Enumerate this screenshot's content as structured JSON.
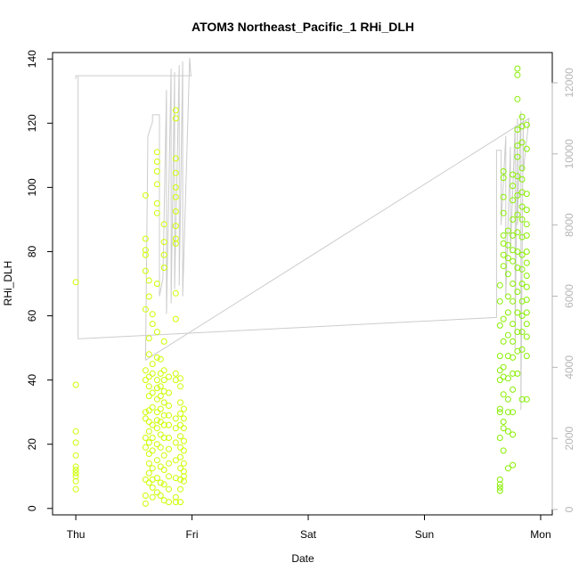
{
  "chart_data": {
    "type": "scatter",
    "title": "ATOM3 Northeast_Pacific_1 RHi_DLH",
    "xlabel": "Date",
    "ylabel": "RHi_DLH",
    "x_ticks": [
      "Thu",
      "Fri",
      "Sat",
      "Sun",
      "Mon"
    ],
    "x_range_days": [
      -0.2,
      4.1
    ],
    "ylim": [
      -2,
      142
    ],
    "y_ticks": [
      0,
      20,
      40,
      60,
      80,
      100,
      120,
      140
    ],
    "y2_ticks": [
      0,
      2000,
      4000,
      6000,
      8000,
      10000,
      12000
    ],
    "y2lim": [
      -150,
      12850
    ],
    "grid": false,
    "colors": {
      "points_early": "#ccff00",
      "points_late": "#88ee00",
      "line": "#cccccc",
      "right_axis": "#b5b5b5",
      "axis": "#000000"
    },
    "series": [
      {
        "style": "points",
        "points": [
          [
            0.0,
            70.5
          ],
          [
            0.0,
            38.5
          ],
          [
            0.0,
            24
          ],
          [
            0.0,
            20.5
          ],
          [
            0.0,
            16.5
          ],
          [
            0.0,
            13
          ],
          [
            0.0,
            12
          ],
          [
            0.0,
            11
          ],
          [
            0.0,
            10
          ],
          [
            0.0,
            8.5
          ],
          [
            0.0,
            6
          ],
          [
            0.6,
            97.5
          ],
          [
            0.6,
            84
          ],
          [
            0.6,
            80.5
          ],
          [
            0.6,
            79
          ],
          [
            0.6,
            74
          ],
          [
            0.6,
            62
          ],
          [
            0.6,
            43
          ],
          [
            0.6,
            40
          ],
          [
            0.6,
            30
          ],
          [
            0.6,
            28
          ],
          [
            0.6,
            22
          ],
          [
            0.6,
            19
          ],
          [
            0.6,
            9
          ],
          [
            0.6,
            4
          ],
          [
            0.6,
            1.5
          ],
          [
            0.63,
            71
          ],
          [
            0.63,
            66
          ],
          [
            0.63,
            53
          ],
          [
            0.63,
            48
          ],
          [
            0.63,
            41
          ],
          [
            0.63,
            38
          ],
          [
            0.63,
            35
          ],
          [
            0.63,
            30.5
          ],
          [
            0.63,
            27
          ],
          [
            0.63,
            24
          ],
          [
            0.63,
            20.5
          ],
          [
            0.63,
            17
          ],
          [
            0.63,
            14
          ],
          [
            0.63,
            11
          ],
          [
            0.63,
            8
          ],
          [
            0.66,
            60.5
          ],
          [
            0.66,
            57.5
          ],
          [
            0.66,
            45
          ],
          [
            0.66,
            42
          ],
          [
            0.66,
            36
          ],
          [
            0.66,
            31.5
          ],
          [
            0.66,
            26
          ],
          [
            0.66,
            22
          ],
          [
            0.66,
            18
          ],
          [
            0.66,
            12.5
          ],
          [
            0.66,
            9
          ],
          [
            0.66,
            6.5
          ],
          [
            0.66,
            3.5
          ],
          [
            0.7,
            111
          ],
          [
            0.7,
            108
          ],
          [
            0.7,
            105
          ],
          [
            0.7,
            101
          ],
          [
            0.7,
            95
          ],
          [
            0.7,
            92
          ],
          [
            0.7,
            70
          ],
          [
            0.7,
            55
          ],
          [
            0.7,
            47
          ],
          [
            0.7,
            40
          ],
          [
            0.7,
            37.5
          ],
          [
            0.7,
            34
          ],
          [
            0.7,
            30
          ],
          [
            0.7,
            27.5
          ],
          [
            0.7,
            25
          ],
          [
            0.7,
            20
          ],
          [
            0.7,
            15
          ],
          [
            0.7,
            9.5
          ],
          [
            0.7,
            5
          ],
          [
            0.73,
            46.5
          ],
          [
            0.73,
            42
          ],
          [
            0.73,
            38
          ],
          [
            0.73,
            35
          ],
          [
            0.73,
            31
          ],
          [
            0.73,
            27
          ],
          [
            0.73,
            23
          ],
          [
            0.73,
            19
          ],
          [
            0.73,
            13
          ],
          [
            0.73,
            8
          ],
          [
            0.73,
            4
          ],
          [
            0.76,
            88.5
          ],
          [
            0.76,
            83
          ],
          [
            0.76,
            79
          ],
          [
            0.76,
            75
          ],
          [
            0.76,
            52
          ],
          [
            0.76,
            43
          ],
          [
            0.76,
            40
          ],
          [
            0.76,
            36.5
          ],
          [
            0.76,
            33
          ],
          [
            0.76,
            29
          ],
          [
            0.76,
            26
          ],
          [
            0.76,
            22
          ],
          [
            0.76,
            16.5
          ],
          [
            0.76,
            12
          ],
          [
            0.76,
            7.5
          ],
          [
            0.76,
            2.5
          ],
          [
            0.8,
            41
          ],
          [
            0.8,
            36
          ],
          [
            0.8,
            32
          ],
          [
            0.8,
            29
          ],
          [
            0.8,
            26
          ],
          [
            0.8,
            22
          ],
          [
            0.8,
            18.5
          ],
          [
            0.8,
            14
          ],
          [
            0.8,
            10
          ],
          [
            0.8,
            6
          ],
          [
            0.8,
            2
          ],
          [
            0.86,
            124
          ],
          [
            0.86,
            121.5
          ],
          [
            0.86,
            109
          ],
          [
            0.86,
            104.5
          ],
          [
            0.86,
            100
          ],
          [
            0.86,
            97
          ],
          [
            0.86,
            92.5
          ],
          [
            0.86,
            88
          ],
          [
            0.86,
            84
          ],
          [
            0.86,
            82.5
          ],
          [
            0.86,
            67
          ],
          [
            0.86,
            59
          ],
          [
            0.86,
            42
          ],
          [
            0.86,
            40
          ],
          [
            0.86,
            28
          ],
          [
            0.86,
            25
          ],
          [
            0.86,
            20.5
          ],
          [
            0.86,
            15
          ],
          [
            0.86,
            9.5
          ],
          [
            0.86,
            3.5
          ],
          [
            0.86,
            2
          ],
          [
            0.9,
            40.5
          ],
          [
            0.9,
            38
          ],
          [
            0.9,
            33
          ],
          [
            0.9,
            29.5
          ],
          [
            0.9,
            26
          ],
          [
            0.9,
            22.5
          ],
          [
            0.9,
            19
          ],
          [
            0.9,
            16
          ],
          [
            0.9,
            12.5
          ],
          [
            0.9,
            9
          ],
          [
            0.9,
            6
          ],
          [
            0.9,
            2
          ],
          [
            0.93,
            31
          ],
          [
            0.93,
            28
          ],
          [
            0.93,
            25
          ],
          [
            0.93,
            21
          ],
          [
            0.93,
            18
          ],
          [
            0.93,
            14
          ],
          [
            0.93,
            11.5
          ],
          [
            0.93,
            10
          ],
          [
            0.93,
            8.5
          ]
        ]
      },
      {
        "style": "points",
        "points": [
          [
            3.65,
            69.5
          ],
          [
            3.65,
            64.5
          ],
          [
            3.65,
            57
          ],
          [
            3.65,
            47.5
          ],
          [
            3.65,
            43
          ],
          [
            3.65,
            40
          ],
          [
            3.65,
            31
          ],
          [
            3.65,
            30
          ],
          [
            3.65,
            22
          ],
          [
            3.65,
            9
          ],
          [
            3.65,
            7.5
          ],
          [
            3.65,
            6.5
          ],
          [
            3.65,
            5.5
          ],
          [
            3.68,
            105
          ],
          [
            3.68,
            103
          ],
          [
            3.68,
            97
          ],
          [
            3.68,
            92
          ],
          [
            3.68,
            85
          ],
          [
            3.68,
            82.5
          ],
          [
            3.68,
            79
          ],
          [
            3.68,
            75.5
          ],
          [
            3.68,
            59
          ],
          [
            3.68,
            52
          ],
          [
            3.68,
            44
          ],
          [
            3.68,
            41
          ],
          [
            3.68,
            35.5
          ],
          [
            3.68,
            27
          ],
          [
            3.68,
            25
          ],
          [
            3.68,
            18
          ],
          [
            3.72,
            86.5
          ],
          [
            3.72,
            82
          ],
          [
            3.72,
            78
          ],
          [
            3.72,
            73
          ],
          [
            3.72,
            66
          ],
          [
            3.72,
            61
          ],
          [
            3.72,
            54
          ],
          [
            3.72,
            47.5
          ],
          [
            3.72,
            40.5
          ],
          [
            3.72,
            34
          ],
          [
            3.72,
            30
          ],
          [
            3.72,
            24
          ],
          [
            3.72,
            12.5
          ],
          [
            3.76,
            104
          ],
          [
            3.76,
            100.5
          ],
          [
            3.76,
            96
          ],
          [
            3.76,
            90
          ],
          [
            3.76,
            85
          ],
          [
            3.76,
            80.5
          ],
          [
            3.76,
            77
          ],
          [
            3.76,
            70
          ],
          [
            3.76,
            64.5
          ],
          [
            3.76,
            57.5
          ],
          [
            3.76,
            52
          ],
          [
            3.76,
            47
          ],
          [
            3.76,
            42
          ],
          [
            3.76,
            37
          ],
          [
            3.76,
            30
          ],
          [
            3.76,
            23
          ],
          [
            3.76,
            13.5
          ],
          [
            3.8,
            137
          ],
          [
            3.8,
            135
          ],
          [
            3.8,
            127.5
          ],
          [
            3.8,
            118
          ],
          [
            3.8,
            113
          ],
          [
            3.8,
            109.5
          ],
          [
            3.8,
            103.5
          ],
          [
            3.8,
            97.5
          ],
          [
            3.8,
            91.5
          ],
          [
            3.8,
            86
          ],
          [
            3.8,
            80
          ],
          [
            3.8,
            75
          ],
          [
            3.8,
            67.5
          ],
          [
            3.8,
            61
          ],
          [
            3.8,
            55
          ],
          [
            3.8,
            49
          ],
          [
            3.8,
            42
          ],
          [
            3.84,
            122
          ],
          [
            3.84,
            119
          ],
          [
            3.84,
            114
          ],
          [
            3.84,
            106
          ],
          [
            3.84,
            102.5
          ],
          [
            3.84,
            98.5
          ],
          [
            3.84,
            94
          ],
          [
            3.84,
            90
          ],
          [
            3.84,
            84.5
          ],
          [
            3.84,
            79
          ],
          [
            3.84,
            74.5
          ],
          [
            3.84,
            70
          ],
          [
            3.84,
            64.5
          ],
          [
            3.84,
            60
          ],
          [
            3.84,
            55
          ],
          [
            3.84,
            49.5
          ],
          [
            3.84,
            34
          ],
          [
            3.88,
            119.5
          ],
          [
            3.88,
            112
          ],
          [
            3.88,
            98
          ],
          [
            3.88,
            93
          ],
          [
            3.88,
            88.5
          ],
          [
            3.88,
            85
          ],
          [
            3.88,
            80
          ],
          [
            3.88,
            76.5
          ],
          [
            3.88,
            72.5
          ],
          [
            3.88,
            69
          ],
          [
            3.88,
            65
          ],
          [
            3.88,
            61
          ],
          [
            3.88,
            57.5
          ],
          [
            3.88,
            53.5
          ],
          [
            3.88,
            47.5
          ],
          [
            3.88,
            34
          ]
        ]
      },
      {
        "style": "line",
        "axis": "right",
        "points": [
          [
            0.0,
            12100
          ],
          [
            0.0,
            12200
          ],
          [
            1.0,
            12200
          ],
          [
            0.02,
            12200
          ],
          [
            0.02,
            4800
          ],
          [
            3.62,
            5400
          ],
          [
            3.62,
            10100
          ],
          [
            3.66,
            10100
          ],
          [
            3.66,
            8000
          ],
          [
            3.7,
            10500
          ],
          [
            3.7,
            6000
          ],
          [
            3.74,
            10200
          ],
          [
            3.74,
            7200
          ],
          [
            3.78,
            10800
          ],
          [
            3.78,
            4500
          ],
          [
            3.8,
            11000
          ],
          [
            3.8,
            8000
          ],
          [
            3.83,
            11200
          ],
          [
            3.83,
            2800
          ],
          [
            3.85,
            11000
          ],
          [
            3.85,
            9500
          ],
          [
            3.9,
            11000
          ],
          [
            0.6,
            4200
          ],
          [
            0.62,
            10500
          ],
          [
            0.66,
            10900
          ],
          [
            0.66,
            11100
          ],
          [
            0.72,
            11100
          ],
          [
            0.72,
            6000
          ],
          [
            0.75,
            6500
          ],
          [
            0.78,
            11800
          ],
          [
            0.78,
            5500
          ],
          [
            0.82,
            12400
          ],
          [
            0.82,
            5800
          ],
          [
            0.85,
            12300
          ],
          [
            0.85,
            6200
          ],
          [
            0.89,
            12500
          ],
          [
            0.89,
            6300
          ],
          [
            0.92,
            12600
          ],
          [
            0.92,
            6000
          ],
          [
            0.98,
            12700
          ],
          [
            0.99,
            12200
          ]
        ]
      }
    ]
  }
}
